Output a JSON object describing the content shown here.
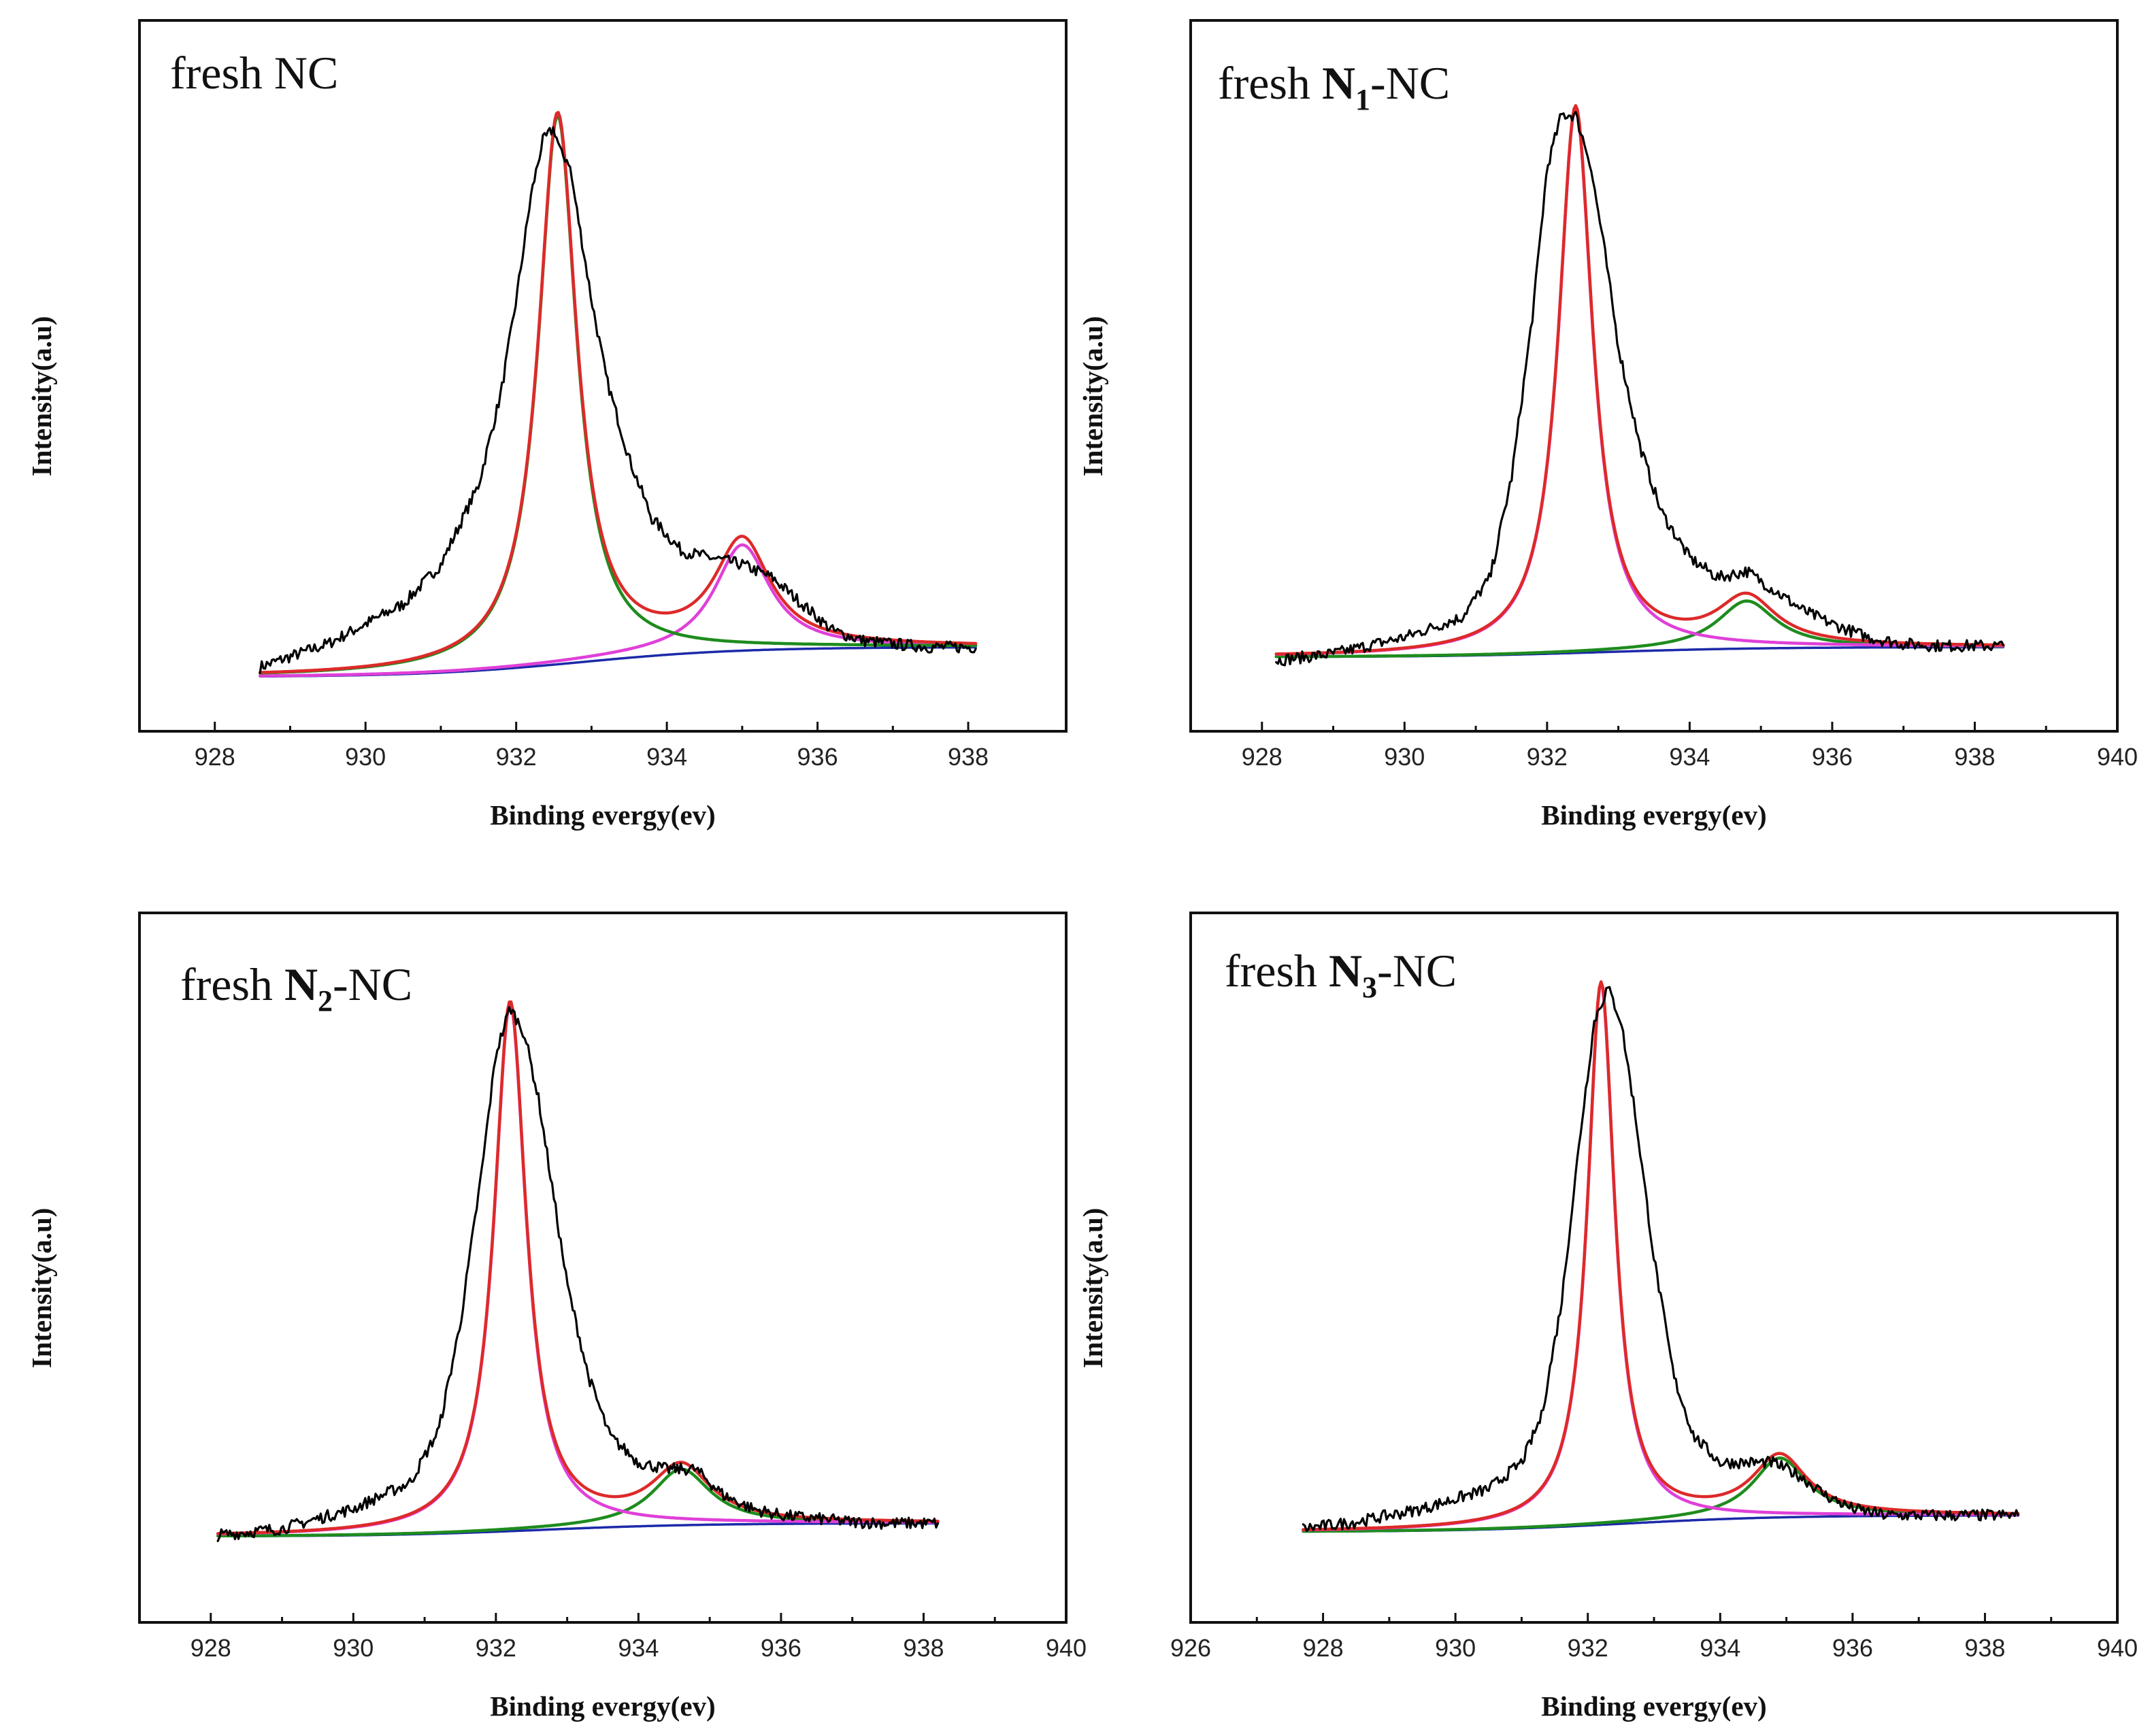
{
  "chart_data": [
    {
      "type": "line",
      "title": "fresh NC",
      "title_parts": [
        {
          "text": "fresh NC",
          "bold": false
        }
      ],
      "xlabel": "Binding evergy(ev)",
      "ylabel": "Intensity(a.u)",
      "xlim": [
        927,
        939.3
      ],
      "ylim": [
        0,
        1.0
      ],
      "x_ticks": [
        928,
        930,
        932,
        934,
        936,
        938
      ],
      "x_range": [
        928.6,
        938.1
      ],
      "baseline": [
        0.05,
        0.095
      ],
      "series": [
        {
          "name": "experimental",
          "color": "#000000",
          "noise": true,
          "x": [
            928.6,
            929.5,
            930.5,
            931.0,
            931.5,
            931.8,
            932.0,
            932.2,
            932.35,
            932.5,
            932.6,
            932.7,
            932.8,
            933.0,
            933.2,
            933.5,
            933.8,
            934.2,
            934.6,
            935.0,
            935.4,
            935.8,
            936.2,
            936.6,
            937.0,
            937.5,
            938.1
          ],
          "y": [
            0.065,
            0.1,
            0.16,
            0.22,
            0.34,
            0.48,
            0.62,
            0.78,
            0.86,
            0.88,
            0.84,
            0.83,
            0.76,
            0.62,
            0.5,
            0.38,
            0.29,
            0.24,
            0.23,
            0.22,
            0.2,
            0.16,
            0.12,
            0.105,
            0.1,
            0.095,
            0.095
          ]
        },
        {
          "name": "fit envelope",
          "color": "#dd2a2a",
          "peaks": [
            [
              932.55,
              0.83,
              0.62
            ],
            [
              935.0,
              0.16,
              0.9
            ]
          ]
        },
        {
          "name": "peak 932.5 eV",
          "color": "#1e8c1e",
          "peaks": [
            [
              932.55,
              0.83,
              0.62
            ]
          ]
        },
        {
          "name": "peak 935.0 eV",
          "color": "#e040d8",
          "peaks": [
            [
              935.0,
              0.16,
              0.9
            ]
          ]
        },
        {
          "name": "background",
          "color": "#1c2aa8",
          "peaks": []
        }
      ]
    },
    {
      "type": "line",
      "title": "fresh N1-NC",
      "title_parts": [
        {
          "text": "fresh ",
          "bold": false
        },
        {
          "text": "N",
          "bold": true
        },
        {
          "text": "1",
          "bold": true,
          "sub": true
        },
        {
          "text": "-NC",
          "bold": false
        }
      ],
      "xlabel": "Binding evergy(ev)",
      "ylabel": "Intensity(a.u)",
      "xlim": [
        927,
        940
      ],
      "ylim": [
        0,
        1.0
      ],
      "x_ticks": [
        928,
        930,
        932,
        934,
        936,
        938,
        940
      ],
      "x_range": [
        928.2,
        938.4
      ],
      "baseline": [
        0.08,
        0.095
      ],
      "series": [
        {
          "name": "experimental",
          "color": "#000000",
          "noise": true,
          "x": [
            928.2,
            929.0,
            930.0,
            930.8,
            931.2,
            931.5,
            931.8,
            932.0,
            932.2,
            932.4,
            932.6,
            932.8,
            933.0,
            933.3,
            933.6,
            934.0,
            934.4,
            934.8,
            935.2,
            935.6,
            936.0,
            936.5,
            937.0,
            937.5,
            938.4
          ],
          "y": [
            0.075,
            0.085,
            0.11,
            0.14,
            0.2,
            0.35,
            0.6,
            0.82,
            0.9,
            0.9,
            0.83,
            0.7,
            0.55,
            0.4,
            0.3,
            0.23,
            0.2,
            0.21,
            0.18,
            0.15,
            0.13,
            0.11,
            0.1,
            0.097,
            0.097
          ]
        },
        {
          "name": "fit envelope",
          "color": "#dd2a2a",
          "peaks": [
            [
              932.4,
              0.825,
              0.58
            ],
            [
              934.8,
              0.072,
              1.0
            ]
          ]
        },
        {
          "name": "peak 932.4 eV",
          "color": "#e040d8",
          "peaks": [
            [
              932.4,
              0.825,
              0.58
            ]
          ]
        },
        {
          "name": "peak 934.8 eV",
          "color": "#1e8c1e",
          "peaks": [
            [
              934.8,
              0.072,
              1.0
            ]
          ]
        },
        {
          "name": "background",
          "color": "#1c2aa8",
          "peaks": []
        }
      ]
    },
    {
      "type": "line",
      "title": "fresh N2-NC",
      "title_parts": [
        {
          "text": "fresh ",
          "bold": false
        },
        {
          "text": "N",
          "bold": true
        },
        {
          "text": "2",
          "bold": true,
          "sub": true
        },
        {
          "text": "-NC",
          "bold": false
        }
      ],
      "xlabel": "Binding evergy(ev)",
      "ylabel": "Intensity(a.u)",
      "xlim": [
        927,
        940
      ],
      "ylim": [
        0,
        1.0
      ],
      "x_ticks": [
        928,
        930,
        932,
        934,
        936,
        938,
        940
      ],
      "x_range": [
        928.1,
        938.2
      ],
      "baseline": [
        0.098,
        0.118
      ],
      "series": [
        {
          "name": "experimental",
          "color": "#000000",
          "noise": true,
          "x": [
            928.1,
            929.0,
            930.0,
            930.8,
            931.2,
            931.5,
            931.8,
            932.0,
            932.2,
            932.4,
            932.6,
            932.8,
            933.0,
            933.3,
            933.6,
            934.0,
            934.4,
            934.8,
            935.2,
            935.6,
            936.0,
            936.5,
            937.0,
            937.5,
            938.2
          ],
          "y": [
            0.1,
            0.11,
            0.14,
            0.18,
            0.26,
            0.42,
            0.65,
            0.83,
            0.9,
            0.86,
            0.76,
            0.62,
            0.48,
            0.34,
            0.25,
            0.21,
            0.2,
            0.2,
            0.16,
            0.14,
            0.13,
            0.125,
            0.12,
            0.118,
            0.118
          ]
        },
        {
          "name": "fit envelope",
          "color": "#dd2a2a",
          "peaks": [
            [
              932.2,
              0.8,
              0.55
            ],
            [
              934.6,
              0.085,
              1.0
            ]
          ]
        },
        {
          "name": "peak 932.2 eV",
          "color": "#e040d8",
          "peaks": [
            [
              932.2,
              0.8,
              0.55
            ]
          ]
        },
        {
          "name": "peak 934.6 eV",
          "color": "#1e8c1e",
          "peaks": [
            [
              934.6,
              0.085,
              1.0
            ]
          ]
        },
        {
          "name": "background",
          "color": "#1c2aa8",
          "peaks": []
        }
      ]
    },
    {
      "type": "line",
      "title": "fresh N3-NC",
      "title_parts": [
        {
          "text": "fresh ",
          "bold": false
        },
        {
          "text": "N",
          "bold": true
        },
        {
          "text": "3",
          "bold": true,
          "sub": true
        },
        {
          "text": "-NC",
          "bold": false
        }
      ],
      "xlabel": "Binding evergy(ev)",
      "ylabel": "Intensity(a.u)",
      "xlim": [
        926,
        940
      ],
      "ylim": [
        0,
        1.0
      ],
      "x_ticks": [
        926,
        928,
        930,
        932,
        934,
        936,
        938,
        940
      ],
      "x_range": [
        927.7,
        938.5
      ],
      "baseline": [
        0.105,
        0.13
      ],
      "series": [
        {
          "name": "experimental",
          "color": "#000000",
          "noise": true,
          "x": [
            927.7,
            928.5,
            929.5,
            930.5,
            931.0,
            931.3,
            931.6,
            931.9,
            932.1,
            932.3,
            932.5,
            932.7,
            933.0,
            933.3,
            933.6,
            934.0,
            934.4,
            934.8,
            935.2,
            935.6,
            936.0,
            936.5,
            937.0,
            937.5,
            938.0,
            938.5
          ],
          "y": [
            0.11,
            0.12,
            0.14,
            0.17,
            0.21,
            0.28,
            0.45,
            0.72,
            0.88,
            0.93,
            0.88,
            0.75,
            0.52,
            0.34,
            0.25,
            0.21,
            0.21,
            0.21,
            0.19,
            0.16,
            0.14,
            0.13,
            0.13,
            0.13,
            0.13,
            0.13
          ]
        },
        {
          "name": "fit envelope",
          "color": "#dd2a2a",
          "peaks": [
            [
              932.2,
              0.82,
              0.5
            ],
            [
              934.9,
              0.09,
              1.0
            ]
          ]
        },
        {
          "name": "peak 932.2 eV",
          "color": "#e040d8",
          "peaks": [
            [
              932.2,
              0.82,
              0.5
            ]
          ]
        },
        {
          "name": "peak 934.9 eV",
          "color": "#1e8c1e",
          "peaks": [
            [
              934.9,
              0.09,
              1.0
            ]
          ]
        },
        {
          "name": "background",
          "color": "#1c2aa8",
          "peaks": []
        }
      ]
    }
  ]
}
